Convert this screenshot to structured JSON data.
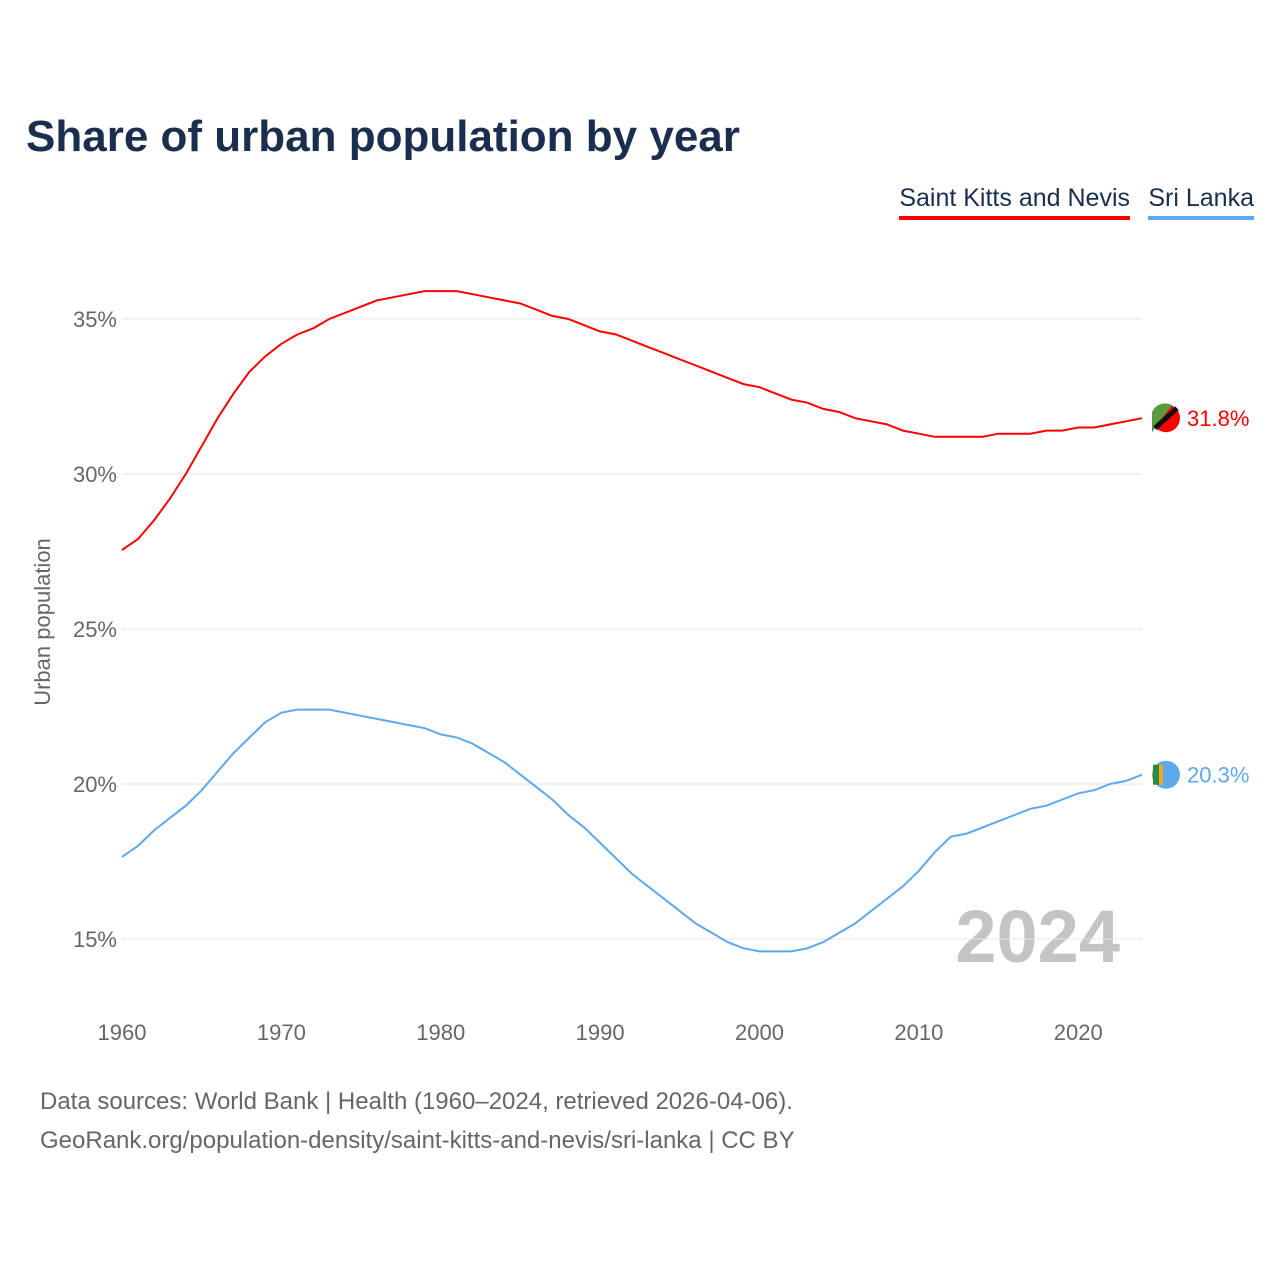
{
  "chart_data": {
    "type": "line",
    "title": "Share of urban population by year",
    "xlabel": "",
    "ylabel": "Urban population",
    "xlim": [
      1960,
      2024
    ],
    "ylim": [
      13,
      37.5
    ],
    "xticks": [
      1960,
      1970,
      1980,
      1990,
      2000,
      2010,
      2020
    ],
    "yticks": [
      15,
      20,
      25,
      30,
      35
    ],
    "ytick_labels": [
      "15%",
      "20%",
      "25%",
      "30%",
      "35%"
    ],
    "xtick_labels": [
      "1960",
      "1970",
      "1980",
      "1990",
      "2000",
      "2010",
      "2020"
    ],
    "grid": true,
    "legend_position": "top-right",
    "year_watermark": "2024",
    "x": [
      1960,
      1961,
      1962,
      1963,
      1964,
      1965,
      1966,
      1967,
      1968,
      1969,
      1970,
      1971,
      1972,
      1973,
      1974,
      1975,
      1976,
      1977,
      1978,
      1979,
      1980,
      1981,
      1982,
      1983,
      1984,
      1985,
      1986,
      1987,
      1988,
      1989,
      1990,
      1991,
      1992,
      1993,
      1994,
      1995,
      1996,
      1997,
      1998,
      1999,
      2000,
      2001,
      2002,
      2003,
      2004,
      2005,
      2006,
      2007,
      2008,
      2009,
      2010,
      2011,
      2012,
      2013,
      2014,
      2015,
      2016,
      2017,
      2018,
      2019,
      2020,
      2021,
      2022,
      2023,
      2024
    ],
    "series": [
      {
        "name": "Saint Kitts and Nevis",
        "color": "#ff0000",
        "end_label": "31.8%",
        "values": [
          27.55,
          27.9,
          28.5,
          29.2,
          30.0,
          30.9,
          31.8,
          32.6,
          33.3,
          33.8,
          34.2,
          34.5,
          34.7,
          35.0,
          35.2,
          35.4,
          35.6,
          35.7,
          35.8,
          35.9,
          35.9,
          35.9,
          35.8,
          35.7,
          35.6,
          35.5,
          35.3,
          35.1,
          35.0,
          34.8,
          34.6,
          34.5,
          34.3,
          34.1,
          33.9,
          33.7,
          33.5,
          33.3,
          33.1,
          32.9,
          32.8,
          32.6,
          32.4,
          32.3,
          32.1,
          32.0,
          31.8,
          31.7,
          31.6,
          31.4,
          31.3,
          31.2,
          31.2,
          31.2,
          31.2,
          31.3,
          31.3,
          31.3,
          31.4,
          31.4,
          31.5,
          31.5,
          31.6,
          31.7,
          31.8
        ]
      },
      {
        "name": "Sri Lanka",
        "color": "#5ea8ec",
        "end_label": "20.3%",
        "values": [
          17.65,
          18.0,
          18.5,
          18.9,
          19.3,
          19.8,
          20.4,
          21.0,
          21.5,
          22.0,
          22.3,
          22.4,
          22.4,
          22.4,
          22.3,
          22.2,
          22.1,
          22.0,
          21.9,
          21.8,
          21.6,
          21.5,
          21.3,
          21.0,
          20.7,
          20.3,
          19.9,
          19.5,
          19.0,
          18.6,
          18.1,
          17.6,
          17.1,
          16.7,
          16.3,
          15.9,
          15.5,
          15.2,
          14.9,
          14.7,
          14.6,
          14.6,
          14.6,
          14.7,
          14.9,
          15.2,
          15.5,
          15.9,
          16.3,
          16.7,
          17.2,
          17.8,
          18.3,
          18.4,
          18.6,
          18.8,
          19.0,
          19.2,
          19.3,
          19.5,
          19.7,
          19.8,
          20.0,
          20.1,
          20.3
        ]
      }
    ]
  },
  "footer": {
    "line1": "Data sources: World Bank | Health (1960–2024, retrieved 2026-04-06).",
    "line2": "GeoRank.org/population-density/saint-kitts-and-nevis/sri-lanka | CC BY"
  }
}
